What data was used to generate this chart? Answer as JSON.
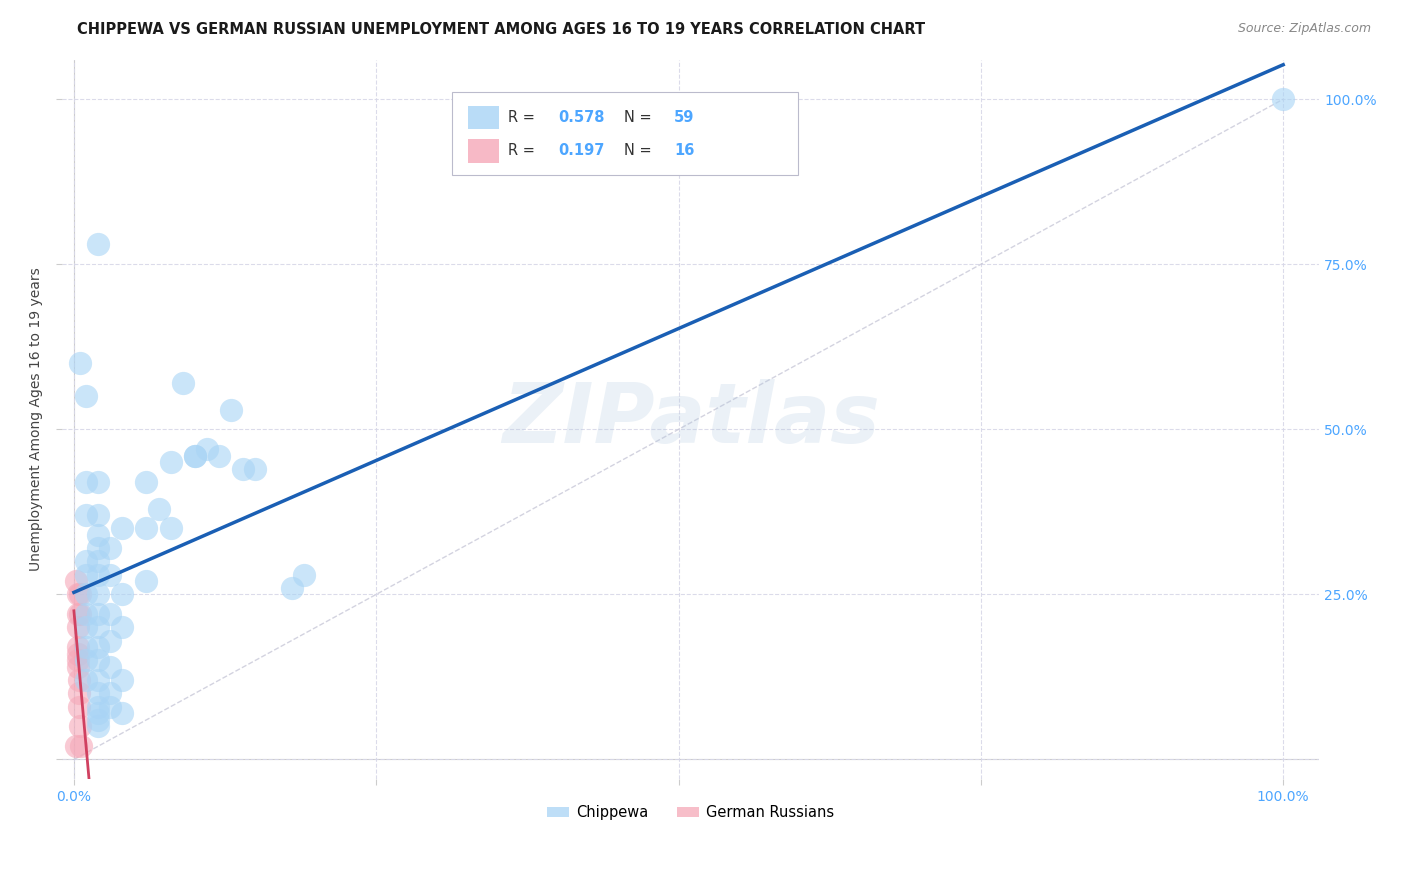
{
  "title": "CHIPPEWA VS GERMAN RUSSIAN UNEMPLOYMENT AMONG AGES 16 TO 19 YEARS CORRELATION CHART",
  "source": "Source: ZipAtlas.com",
  "ylabel": "Unemployment Among Ages 16 to 19 years",
  "chippewa_color": "#a8d4f5",
  "german_russian_color": "#f5a8b8",
  "chippewa_line_color": "#1a5fb4",
  "german_russian_line_color": "#d04060",
  "diagonal_color": "#c8c8d8",
  "R_chippewa": 0.578,
  "N_chippewa": 59,
  "R_german": 0.197,
  "N_german": 16,
  "chippewa_points": [
    [
      0.005,
      0.6
    ],
    [
      0.01,
      0.55
    ],
    [
      0.01,
      0.42
    ],
    [
      0.01,
      0.37
    ],
    [
      0.01,
      0.3
    ],
    [
      0.01,
      0.28
    ],
    [
      0.01,
      0.25
    ],
    [
      0.01,
      0.22
    ],
    [
      0.01,
      0.2
    ],
    [
      0.01,
      0.17
    ],
    [
      0.01,
      0.15
    ],
    [
      0.01,
      0.12
    ],
    [
      0.02,
      0.78
    ],
    [
      0.02,
      0.42
    ],
    [
      0.02,
      0.37
    ],
    [
      0.02,
      0.34
    ],
    [
      0.02,
      0.32
    ],
    [
      0.02,
      0.3
    ],
    [
      0.02,
      0.28
    ],
    [
      0.02,
      0.25
    ],
    [
      0.02,
      0.22
    ],
    [
      0.02,
      0.2
    ],
    [
      0.02,
      0.17
    ],
    [
      0.02,
      0.15
    ],
    [
      0.02,
      0.12
    ],
    [
      0.02,
      0.1
    ],
    [
      0.02,
      0.08
    ],
    [
      0.02,
      0.07
    ],
    [
      0.02,
      0.06
    ],
    [
      0.02,
      0.05
    ],
    [
      0.03,
      0.32
    ],
    [
      0.03,
      0.28
    ],
    [
      0.03,
      0.22
    ],
    [
      0.03,
      0.18
    ],
    [
      0.03,
      0.14
    ],
    [
      0.03,
      0.1
    ],
    [
      0.03,
      0.08
    ],
    [
      0.04,
      0.35
    ],
    [
      0.04,
      0.25
    ],
    [
      0.04,
      0.2
    ],
    [
      0.04,
      0.12
    ],
    [
      0.04,
      0.07
    ],
    [
      0.06,
      0.42
    ],
    [
      0.06,
      0.35
    ],
    [
      0.06,
      0.27
    ],
    [
      0.07,
      0.38
    ],
    [
      0.08,
      0.45
    ],
    [
      0.08,
      0.35
    ],
    [
      0.09,
      0.57
    ],
    [
      0.1,
      0.46
    ],
    [
      0.1,
      0.46
    ],
    [
      0.11,
      0.47
    ],
    [
      0.12,
      0.46
    ],
    [
      0.13,
      0.53
    ],
    [
      0.14,
      0.44
    ],
    [
      0.15,
      0.44
    ],
    [
      0.18,
      0.26
    ],
    [
      0.19,
      0.28
    ],
    [
      1.0,
      1.0
    ]
  ],
  "german_points": [
    [
      0.002,
      0.27
    ],
    [
      0.003,
      0.25
    ],
    [
      0.003,
      0.22
    ],
    [
      0.003,
      0.2
    ],
    [
      0.003,
      0.17
    ],
    [
      0.003,
      0.16
    ],
    [
      0.003,
      0.15
    ],
    [
      0.003,
      0.14
    ],
    [
      0.004,
      0.12
    ],
    [
      0.004,
      0.1
    ],
    [
      0.004,
      0.08
    ],
    [
      0.005,
      0.25
    ],
    [
      0.005,
      0.22
    ],
    [
      0.005,
      0.05
    ],
    [
      0.006,
      0.02
    ],
    [
      0.002,
      0.02
    ]
  ],
  "background_color": "#ffffff",
  "grid_color": "#d8d8e8",
  "watermark": "ZIPatlas"
}
